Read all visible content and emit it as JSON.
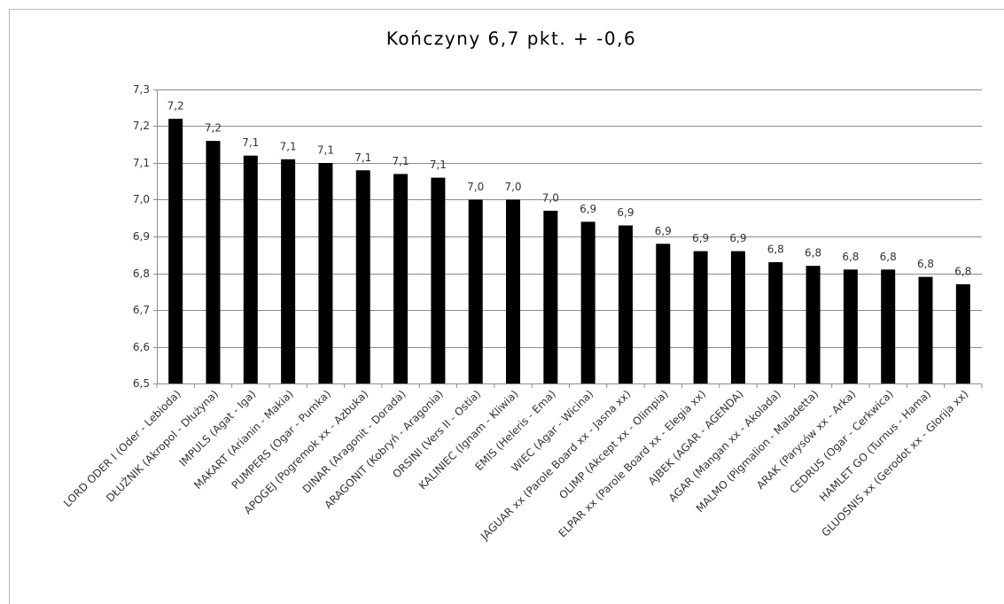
{
  "chart_data": {
    "type": "bar",
    "title": "Kończyny 6,7 pkt. + -0,6",
    "categories": [
      "LORD ODER I (Oder - Lebioda)",
      "DŁUŻNIK (Akropol - Dłużyna)",
      "IMPULS (Agat - Iga)",
      "MAKART (Arianin - Makia)",
      "PUMPERS (Ogar - Pumka)",
      "APOGEJ (Pogremok xx - Azbuka)",
      "DINAR (Aragonit - Dorada)",
      "ARAGONIT (Kobryń - Aragonia)",
      "ORSINI (Vers II - Ostia)",
      "KALINIEC (Ignam - Kliwia)",
      "EMIS (Heleris - Ema)",
      "WIEC (Agar - Wicina)",
      "JAGUAR xx (Parole Board xx - Jasna xx)",
      "OLIMP (Akcept xx - Olimpia)",
      "ELPAR xx (Parole Board xx - Elegia xx)",
      "AJBEK (AGAR - AGENDA)",
      "AGAR (Mangan xx - Akolada)",
      "MALMO (Pigmalion - Maladetta)",
      "ARAK (Parysów xx - Arka)",
      "CEDRUS (Ogar - Cerkwica)",
      "HAMLET GO (Turnus - Hama)",
      "GLUOSNIS xx (Gerodot xx - Glorija xx)"
    ],
    "values": [
      7.22,
      7.16,
      7.12,
      7.11,
      7.1,
      7.08,
      7.07,
      7.06,
      7.0,
      7.0,
      6.97,
      6.94,
      6.93,
      6.88,
      6.86,
      6.86,
      6.83,
      6.82,
      6.81,
      6.81,
      6.79,
      6.77
    ],
    "value_labels": [
      "7,2",
      "7,2",
      "7,1",
      "7,1",
      "7,1",
      "7,1",
      "7,1",
      "7,1",
      "7,0",
      "7,0",
      "7,0",
      "6,9",
      "6,9",
      "6,9",
      "6,9",
      "6,9",
      "6,8",
      "6,8",
      "6,8",
      "6,8",
      "6,8",
      "6,8"
    ],
    "color": "#000000",
    "ylim": [
      6.5,
      7.3
    ],
    "yticks": [
      {
        "value": 6.5,
        "label": "6,5"
      },
      {
        "value": 6.6,
        "label": "6,6"
      },
      {
        "value": 6.7,
        "label": "6,7"
      },
      {
        "value": 6.8,
        "label": "6,8"
      },
      {
        "value": 6.9,
        "label": "6,9"
      },
      {
        "value": 7.0,
        "label": "7,0"
      },
      {
        "value": 7.1,
        "label": "7,1"
      },
      {
        "value": 7.2,
        "label": "7,2"
      },
      {
        "value": 7.3,
        "label": "7,3"
      }
    ],
    "grid": true
  }
}
